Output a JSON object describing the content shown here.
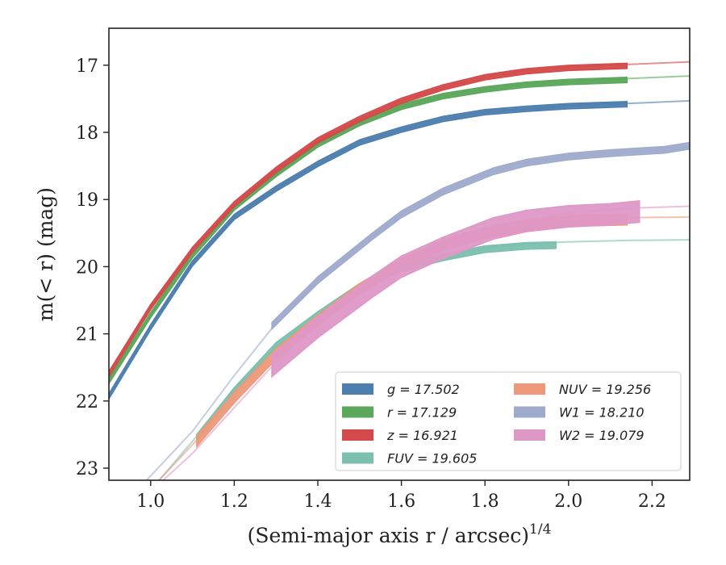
{
  "chart_data": {
    "type": "line",
    "xlabel": "(Semi-major axis r / arcsec)",
    "xlabel_superscript": "1/4",
    "ylabel": "m(< r) (mag)",
    "xlim": [
      0.9,
      2.29
    ],
    "ylim": [
      23.18,
      16.45
    ],
    "y_inverted": true,
    "x_ticks": [
      1.0,
      1.2,
      1.4,
      1.6,
      1.8,
      2.0,
      2.2
    ],
    "x_tick_labels": [
      "1.0",
      "1.2",
      "1.4",
      "1.6",
      "1.8",
      "2.0",
      "2.2"
    ],
    "y_ticks": [
      17,
      18,
      19,
      20,
      21,
      22,
      23
    ],
    "y_tick_labels": [
      "17",
      "18",
      "19",
      "20",
      "21",
      "22",
      "23"
    ],
    "grid": false,
    "legend_position": "lower-right",
    "series": [
      {
        "name": "g = 17.502",
        "band": "g",
        "value": "17.502",
        "color": "#4c7eae",
        "data_x": [
          0.9,
          1.0,
          1.1,
          1.2,
          1.3,
          1.4,
          1.5,
          1.6,
          1.7,
          1.8,
          1.9,
          2.0,
          2.14
        ],
        "data_y": [
          21.93,
          20.9,
          19.95,
          19.26,
          18.84,
          18.47,
          18.15,
          17.96,
          17.8,
          17.7,
          17.65,
          17.61,
          17.58
        ],
        "data_width": 0.08,
        "model_x": [
          0.9,
          1.0,
          1.1,
          1.2,
          1.3,
          1.4,
          1.5,
          1.6,
          1.7,
          1.8,
          1.9,
          2.0,
          2.14,
          2.29
        ],
        "model_y": [
          21.9,
          20.88,
          19.95,
          19.26,
          18.84,
          18.47,
          18.15,
          17.96,
          17.8,
          17.7,
          17.65,
          17.6,
          17.57,
          17.53
        ]
      },
      {
        "name": "r = 17.129",
        "band": "r",
        "value": "17.129",
        "color": "#5ba75b",
        "data_x": [
          0.9,
          1.0,
          1.1,
          1.2,
          1.3,
          1.4,
          1.5,
          1.6,
          1.7,
          1.8,
          1.9,
          2.0,
          2.14
        ],
        "data_y": [
          21.7,
          20.72,
          19.83,
          19.12,
          18.62,
          18.18,
          17.86,
          17.62,
          17.46,
          17.36,
          17.29,
          17.25,
          17.22
        ],
        "data_width": 0.08,
        "model_x": [
          0.9,
          1.0,
          1.1,
          1.2,
          1.3,
          1.4,
          1.5,
          1.6,
          1.7,
          1.8,
          1.9,
          2.0,
          2.14,
          2.29
        ],
        "model_y": [
          21.68,
          20.7,
          19.82,
          19.12,
          18.62,
          18.18,
          17.86,
          17.62,
          17.46,
          17.35,
          17.28,
          17.24,
          17.2,
          17.16
        ]
      },
      {
        "name": "z = 16.921",
        "band": "z",
        "value": "16.921",
        "color": "#d44a4a",
        "data_x": [
          0.9,
          1.0,
          1.1,
          1.2,
          1.3,
          1.4,
          1.5,
          1.6,
          1.7,
          1.8,
          1.9,
          2.0,
          2.14
        ],
        "data_y": [
          21.6,
          20.6,
          19.75,
          19.07,
          18.56,
          18.12,
          17.8,
          17.53,
          17.33,
          17.18,
          17.09,
          17.04,
          17.01
        ],
        "data_width": 0.08,
        "model_x": [
          0.9,
          1.0,
          1.1,
          1.2,
          1.3,
          1.4,
          1.5,
          1.6,
          1.7,
          1.8,
          1.9,
          2.0,
          2.14,
          2.29
        ],
        "model_y": [
          21.58,
          20.6,
          19.75,
          19.07,
          18.56,
          18.12,
          17.8,
          17.53,
          17.33,
          17.18,
          17.08,
          17.03,
          16.99,
          16.95
        ]
      },
      {
        "name": "FUV = 19.605",
        "band": "FUV",
        "value": "19.605",
        "color": "#7bbfae",
        "data_x": [
          1.11,
          1.2,
          1.3,
          1.4,
          1.5,
          1.6,
          1.7,
          1.8,
          1.9,
          1.97
        ],
        "data_y": [
          22.55,
          21.85,
          21.18,
          20.72,
          20.3,
          20.02,
          19.86,
          19.74,
          19.69,
          19.68
        ],
        "data_width": 0.1,
        "model_x": [
          1.02,
          1.1,
          1.2,
          1.3,
          1.4,
          1.5,
          1.6,
          1.7,
          1.8,
          1.9,
          2.0,
          2.14,
          2.29
        ],
        "model_y": [
          23.18,
          22.6,
          21.86,
          21.2,
          20.72,
          20.3,
          20.02,
          19.84,
          19.72,
          19.66,
          19.63,
          19.61,
          19.6
        ]
      },
      {
        "name": "NUV = 19.256",
        "band": "NUV",
        "value": "19.256",
        "color": "#ee9a7a",
        "data_x": [
          1.11,
          1.2,
          1.3,
          1.4,
          1.5,
          1.6,
          1.7,
          1.8,
          1.9,
          2.0,
          2.14
        ],
        "data_y": [
          22.6,
          21.95,
          21.3,
          20.8,
          20.33,
          19.96,
          19.68,
          19.5,
          19.38,
          19.32,
          19.3
        ],
        "data_width": 0.16,
        "model_x": [
          1.02,
          1.1,
          1.2,
          1.3,
          1.4,
          1.5,
          1.6,
          1.7,
          1.8,
          1.9,
          2.0,
          2.14,
          2.29
        ],
        "model_y": [
          23.18,
          22.65,
          21.95,
          21.3,
          20.8,
          20.33,
          19.96,
          19.68,
          19.5,
          19.37,
          19.3,
          19.27,
          19.26
        ]
      },
      {
        "name": "W1 = 18.210",
        "band": "W1",
        "value": "18.210",
        "color": "#9fabcc",
        "data_x": [
          1.29,
          1.4,
          1.53,
          1.6,
          1.7,
          1.82,
          1.9,
          2.0,
          2.1,
          2.23,
          2.29
        ],
        "data_y": [
          20.88,
          20.2,
          19.55,
          19.22,
          18.88,
          18.58,
          18.45,
          18.36,
          18.31,
          18.26,
          18.2
        ],
        "data_width": 0.1,
        "model_x": [
          0.99,
          1.1,
          1.2,
          1.29,
          1.4,
          1.53,
          1.6,
          1.7,
          1.82,
          1.9,
          2.0,
          2.1,
          2.2,
          2.29
        ],
        "model_y": [
          23.18,
          22.45,
          21.62,
          20.92,
          20.2,
          19.55,
          19.22,
          18.88,
          18.58,
          18.45,
          18.36,
          18.31,
          18.27,
          18.22
        ]
      },
      {
        "name": "W2 = 19.079",
        "band": "W2",
        "value": "19.079",
        "color": "#de98c6",
        "data_x": [
          1.29,
          1.4,
          1.53,
          1.6,
          1.7,
          1.82,
          1.9,
          2.0,
          2.1,
          2.17
        ],
        "data_y": [
          21.48,
          20.9,
          20.3,
          20.0,
          19.72,
          19.43,
          19.32,
          19.25,
          19.22,
          19.18
        ],
        "data_width": 0.32,
        "model_x": [
          1.03,
          1.1,
          1.2,
          1.3,
          1.4,
          1.5,
          1.6,
          1.7,
          1.8,
          1.9,
          2.0,
          2.14,
          2.29
        ],
        "model_y": [
          23.18,
          22.78,
          22.1,
          21.42,
          20.85,
          20.38,
          20.0,
          19.72,
          19.48,
          19.32,
          19.2,
          19.13,
          19.1
        ]
      }
    ]
  }
}
